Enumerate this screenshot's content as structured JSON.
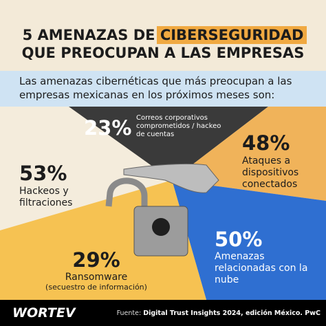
{
  "header": {
    "title_start": "5 AMENAZAS DE",
    "title_highlight": "CIBERSEGURIDAD",
    "title_line2": "QUE PREOCUPAN A LAS EMPRESAS"
  },
  "intro": "Las amenazas cibernéticas que más preocupan a las empresas mexicanas en los próximos meses son:",
  "threats": [
    {
      "percent": "23%",
      "label": "Correos corporativos comprometidos / hackeo de cuentas"
    },
    {
      "percent": "48%",
      "label": "Ataques a dispositivos conectados"
    },
    {
      "percent": "53%",
      "label": "Hackeos y filtraciones"
    },
    {
      "percent": "29%",
      "label": "Ransomware",
      "note": "(secuestro de información)"
    },
    {
      "percent": "50%",
      "label": "Amenazas relacionadas con la nube"
    }
  ],
  "footer": {
    "brand": "WORTEV",
    "source_label": "Fuente:",
    "source": "Digital Trust Insights 2024, edición México. PwC"
  }
}
